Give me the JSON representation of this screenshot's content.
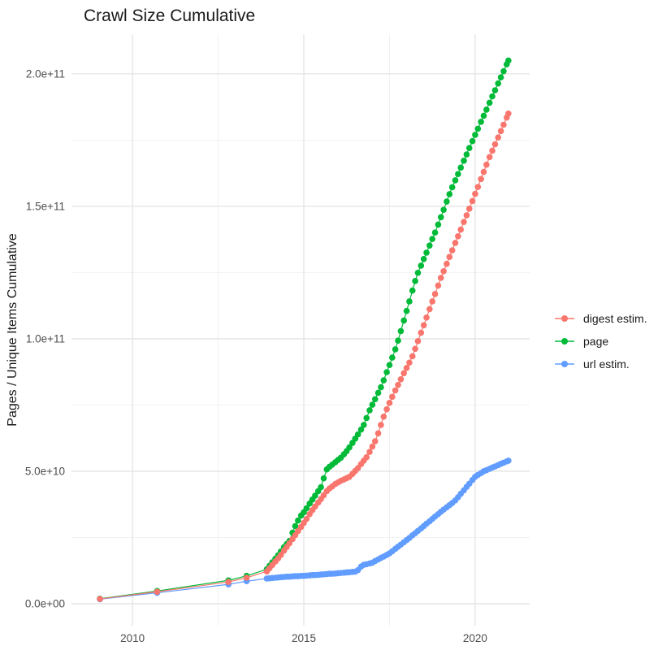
{
  "title": "Crawl Size Cumulative",
  "y_axis_title": "Pages / Unique Items Cumulative",
  "legend": {
    "position": "right",
    "items": [
      {
        "label": "digest estim.",
        "color": "#F8766D"
      },
      {
        "label": "page",
        "color": "#00BA38"
      },
      {
        "label": "url estim.",
        "color": "#619CFF"
      }
    ]
  },
  "colors": {
    "background": "#FFFFFF",
    "grid_major": "#E4E4E4",
    "grid_minor": "#F1F1F1",
    "tick_text": "#4D4D4D",
    "title_text": "#1A1A1A"
  },
  "chart_data": {
    "type": "scatter",
    "mark": "point+line",
    "title": "Crawl Size Cumulative",
    "xlabel": "",
    "ylabel": "Pages / Unique Items Cumulative",
    "legend_position": "right",
    "grid": "major+minor",
    "value_unit": "1e10",
    "xlim": [
      2008.22,
      2021.59
    ],
    "ylim": [
      -0.83,
      21.5
    ],
    "x_ticks": [
      {
        "v": 2010,
        "label": "2010"
      },
      {
        "v": 2015,
        "label": "2015"
      },
      {
        "v": 2020,
        "label": "2020"
      }
    ],
    "x_minor_ticks": [
      2012.5,
      2017.5
    ],
    "y_ticks": [
      {
        "v": 0,
        "label": "0.0e+00"
      },
      {
        "v": 5,
        "label": "5.0e+10"
      },
      {
        "v": 10,
        "label": "1.0e+11"
      },
      {
        "v": 15,
        "label": "1.5e+11"
      },
      {
        "v": 20,
        "label": "2.0e+11"
      }
    ],
    "y_minor_ticks": [
      2.5,
      7.5,
      12.5,
      17.5
    ],
    "draw_order": [
      1,
      2,
      0
    ],
    "series": [
      {
        "name": "digest estim.",
        "color": "#F8766D",
        "points": [
          [
            2009.05,
            0.18
          ],
          [
            2010.72,
            0.45
          ],
          [
            2012.8,
            0.82
          ],
          [
            2013.33,
            0.98
          ],
          [
            2013.92,
            1.22
          ],
          [
            2014.0,
            1.34
          ],
          [
            2014.08,
            1.46
          ],
          [
            2014.17,
            1.59
          ],
          [
            2014.25,
            1.71
          ],
          [
            2014.33,
            1.84
          ],
          [
            2014.42,
            2.0
          ],
          [
            2014.5,
            2.14
          ],
          [
            2014.58,
            2.28
          ],
          [
            2014.67,
            2.44
          ],
          [
            2014.75,
            2.59
          ],
          [
            2014.83,
            2.74
          ],
          [
            2014.92,
            2.9
          ],
          [
            2015.0,
            3.05
          ],
          [
            2015.08,
            3.2
          ],
          [
            2015.17,
            3.38
          ],
          [
            2015.25,
            3.53
          ],
          [
            2015.33,
            3.67
          ],
          [
            2015.42,
            3.82
          ],
          [
            2015.5,
            3.95
          ],
          [
            2015.58,
            4.09
          ],
          [
            2015.67,
            4.25
          ],
          [
            2015.75,
            4.35
          ],
          [
            2015.83,
            4.43
          ],
          [
            2015.92,
            4.52
          ],
          [
            2016.0,
            4.58
          ],
          [
            2016.08,
            4.64
          ],
          [
            2016.17,
            4.69
          ],
          [
            2016.25,
            4.74
          ],
          [
            2016.33,
            4.79
          ],
          [
            2016.42,
            4.9
          ],
          [
            2016.5,
            5.01
          ],
          [
            2016.58,
            5.12
          ],
          [
            2016.67,
            5.27
          ],
          [
            2016.75,
            5.4
          ],
          [
            2016.83,
            5.53
          ],
          [
            2016.92,
            5.73
          ],
          [
            2017.0,
            5.93
          ],
          [
            2017.08,
            6.13
          ],
          [
            2017.17,
            6.43
          ],
          [
            2017.25,
            6.75
          ],
          [
            2017.33,
            7.06
          ],
          [
            2017.42,
            7.34
          ],
          [
            2017.5,
            7.58
          ],
          [
            2017.58,
            7.81
          ],
          [
            2017.67,
            8.05
          ],
          [
            2017.75,
            8.26
          ],
          [
            2017.83,
            8.47
          ],
          [
            2017.92,
            8.7
          ],
          [
            2018.0,
            8.9
          ],
          [
            2018.08,
            9.1
          ],
          [
            2018.17,
            9.34
          ],
          [
            2018.25,
            9.62
          ],
          [
            2018.33,
            9.91
          ],
          [
            2018.42,
            10.23
          ],
          [
            2018.5,
            10.51
          ],
          [
            2018.58,
            10.8
          ],
          [
            2018.67,
            11.12
          ],
          [
            2018.75,
            11.41
          ],
          [
            2018.83,
            11.69
          ],
          [
            2018.92,
            12.01
          ],
          [
            2019.0,
            12.3
          ],
          [
            2019.08,
            12.55
          ],
          [
            2019.17,
            12.83
          ],
          [
            2019.25,
            13.09
          ],
          [
            2019.33,
            13.34
          ],
          [
            2019.42,
            13.62
          ],
          [
            2019.5,
            13.87
          ],
          [
            2019.58,
            14.12
          ],
          [
            2019.67,
            14.41
          ],
          [
            2019.75,
            14.66
          ],
          [
            2019.83,
            14.91
          ],
          [
            2019.92,
            15.2
          ],
          [
            2020.0,
            15.47
          ],
          [
            2020.08,
            15.73
          ],
          [
            2020.17,
            16.03
          ],
          [
            2020.25,
            16.3
          ],
          [
            2020.33,
            16.57
          ],
          [
            2020.42,
            16.86
          ],
          [
            2020.5,
            17.1
          ],
          [
            2020.58,
            17.34
          ],
          [
            2020.67,
            17.6
          ],
          [
            2020.75,
            17.84
          ],
          [
            2020.83,
            18.08
          ],
          [
            2020.92,
            18.35
          ],
          [
            2020.97,
            18.5
          ]
        ]
      },
      {
        "name": "page",
        "color": "#00BA38",
        "points": [
          [
            2009.05,
            0.19
          ],
          [
            2010.72,
            0.48
          ],
          [
            2012.8,
            0.88
          ],
          [
            2013.33,
            1.05
          ],
          [
            2013.92,
            1.3
          ],
          [
            2014.0,
            1.43
          ],
          [
            2014.08,
            1.56
          ],
          [
            2014.17,
            1.7
          ],
          [
            2014.25,
            1.83
          ],
          [
            2014.33,
            1.97
          ],
          [
            2014.42,
            2.13
          ],
          [
            2014.5,
            2.25
          ],
          [
            2014.58,
            2.37
          ],
          [
            2014.67,
            2.68
          ],
          [
            2014.75,
            2.93
          ],
          [
            2014.83,
            3.14
          ],
          [
            2014.92,
            3.33
          ],
          [
            2015.0,
            3.45
          ],
          [
            2015.08,
            3.6
          ],
          [
            2015.17,
            3.78
          ],
          [
            2015.25,
            3.93
          ],
          [
            2015.33,
            4.08
          ],
          [
            2015.42,
            4.25
          ],
          [
            2015.5,
            4.4
          ],
          [
            2015.58,
            4.73
          ],
          [
            2015.67,
            5.07
          ],
          [
            2015.75,
            5.17
          ],
          [
            2015.83,
            5.25
          ],
          [
            2015.92,
            5.34
          ],
          [
            2016.0,
            5.43
          ],
          [
            2016.08,
            5.51
          ],
          [
            2016.17,
            5.64
          ],
          [
            2016.25,
            5.76
          ],
          [
            2016.33,
            5.9
          ],
          [
            2016.42,
            6.07
          ],
          [
            2016.5,
            6.23
          ],
          [
            2016.58,
            6.39
          ],
          [
            2016.67,
            6.57
          ],
          [
            2016.75,
            6.75
          ],
          [
            2016.83,
            7.01
          ],
          [
            2016.92,
            7.3
          ],
          [
            2017.0,
            7.51
          ],
          [
            2017.08,
            7.72
          ],
          [
            2017.17,
            7.96
          ],
          [
            2017.25,
            8.17
          ],
          [
            2017.33,
            8.43
          ],
          [
            2017.42,
            8.74
          ],
          [
            2017.5,
            9.01
          ],
          [
            2017.58,
            9.29
          ],
          [
            2017.67,
            9.6
          ],
          [
            2017.75,
            9.93
          ],
          [
            2017.83,
            10.29
          ],
          [
            2017.92,
            10.69
          ],
          [
            2018.0,
            11.05
          ],
          [
            2018.08,
            11.41
          ],
          [
            2018.17,
            11.82
          ],
          [
            2018.25,
            12.18
          ],
          [
            2018.33,
            12.49
          ],
          [
            2018.42,
            12.76
          ],
          [
            2018.5,
            13.01
          ],
          [
            2018.58,
            13.25
          ],
          [
            2018.67,
            13.52
          ],
          [
            2018.75,
            13.77
          ],
          [
            2018.83,
            14.01
          ],
          [
            2018.92,
            14.31
          ],
          [
            2019.0,
            14.59
          ],
          [
            2019.08,
            14.87
          ],
          [
            2019.17,
            15.18
          ],
          [
            2019.25,
            15.46
          ],
          [
            2019.33,
            15.72
          ],
          [
            2019.42,
            15.98
          ],
          [
            2019.5,
            16.22
          ],
          [
            2019.58,
            16.46
          ],
          [
            2019.67,
            16.72
          ],
          [
            2019.75,
            16.96
          ],
          [
            2019.83,
            17.2
          ],
          [
            2019.92,
            17.46
          ],
          [
            2020.0,
            17.7
          ],
          [
            2020.08,
            17.93
          ],
          [
            2020.17,
            18.19
          ],
          [
            2020.25,
            18.42
          ],
          [
            2020.33,
            18.65
          ],
          [
            2020.42,
            18.91
          ],
          [
            2020.5,
            19.15
          ],
          [
            2020.58,
            19.38
          ],
          [
            2020.67,
            19.64
          ],
          [
            2020.75,
            19.87
          ],
          [
            2020.83,
            20.1
          ],
          [
            2020.92,
            20.36
          ],
          [
            2020.97,
            20.5
          ]
        ]
      },
      {
        "name": "url estim.",
        "color": "#619CFF",
        "points": [
          [
            2009.05,
            0.17
          ],
          [
            2010.72,
            0.41
          ],
          [
            2012.8,
            0.73
          ],
          [
            2013.33,
            0.85
          ],
          [
            2013.92,
            0.95
          ],
          [
            2014.0,
            0.96
          ],
          [
            2014.08,
            0.97
          ],
          [
            2014.17,
            0.98
          ],
          [
            2014.25,
            0.99
          ],
          [
            2014.33,
            1.0
          ],
          [
            2014.42,
            1.01
          ],
          [
            2014.5,
            1.02
          ],
          [
            2014.58,
            1.02
          ],
          [
            2014.67,
            1.03
          ],
          [
            2014.75,
            1.04
          ],
          [
            2014.83,
            1.04
          ],
          [
            2014.92,
            1.05
          ],
          [
            2015.0,
            1.05
          ],
          [
            2015.08,
            1.06
          ],
          [
            2015.17,
            1.07
          ],
          [
            2015.25,
            1.08
          ],
          [
            2015.33,
            1.08
          ],
          [
            2015.42,
            1.09
          ],
          [
            2015.5,
            1.1
          ],
          [
            2015.58,
            1.11
          ],
          [
            2015.67,
            1.12
          ],
          [
            2015.75,
            1.13
          ],
          [
            2015.83,
            1.13
          ],
          [
            2015.92,
            1.14
          ],
          [
            2016.0,
            1.15
          ],
          [
            2016.08,
            1.16
          ],
          [
            2016.17,
            1.17
          ],
          [
            2016.25,
            1.18
          ],
          [
            2016.33,
            1.19
          ],
          [
            2016.42,
            1.2
          ],
          [
            2016.5,
            1.21
          ],
          [
            2016.58,
            1.27
          ],
          [
            2016.67,
            1.4
          ],
          [
            2016.75,
            1.47
          ],
          [
            2016.83,
            1.49
          ],
          [
            2016.92,
            1.52
          ],
          [
            2017.0,
            1.55
          ],
          [
            2017.08,
            1.61
          ],
          [
            2017.17,
            1.67
          ],
          [
            2017.25,
            1.73
          ],
          [
            2017.33,
            1.78
          ],
          [
            2017.42,
            1.84
          ],
          [
            2017.5,
            1.9
          ],
          [
            2017.58,
            1.98
          ],
          [
            2017.67,
            2.07
          ],
          [
            2017.75,
            2.15
          ],
          [
            2017.83,
            2.23
          ],
          [
            2017.92,
            2.32
          ],
          [
            2018.0,
            2.4
          ],
          [
            2018.08,
            2.48
          ],
          [
            2018.17,
            2.58
          ],
          [
            2018.25,
            2.66
          ],
          [
            2018.33,
            2.75
          ],
          [
            2018.42,
            2.84
          ],
          [
            2018.5,
            2.93
          ],
          [
            2018.58,
            3.02
          ],
          [
            2018.67,
            3.11
          ],
          [
            2018.75,
            3.2
          ],
          [
            2018.83,
            3.29
          ],
          [
            2018.92,
            3.38
          ],
          [
            2019.0,
            3.47
          ],
          [
            2019.08,
            3.55
          ],
          [
            2019.17,
            3.64
          ],
          [
            2019.25,
            3.72
          ],
          [
            2019.33,
            3.8
          ],
          [
            2019.42,
            3.9
          ],
          [
            2019.5,
            4.02
          ],
          [
            2019.58,
            4.15
          ],
          [
            2019.67,
            4.28
          ],
          [
            2019.75,
            4.41
          ],
          [
            2019.83,
            4.53
          ],
          [
            2019.92,
            4.67
          ],
          [
            2020.0,
            4.79
          ],
          [
            2020.08,
            4.86
          ],
          [
            2020.17,
            4.93
          ],
          [
            2020.25,
            5.0
          ],
          [
            2020.33,
            5.04
          ],
          [
            2020.42,
            5.09
          ],
          [
            2020.5,
            5.14
          ],
          [
            2020.58,
            5.18
          ],
          [
            2020.67,
            5.23
          ],
          [
            2020.75,
            5.28
          ],
          [
            2020.83,
            5.32
          ],
          [
            2020.92,
            5.37
          ],
          [
            2020.97,
            5.4
          ]
        ]
      }
    ]
  }
}
